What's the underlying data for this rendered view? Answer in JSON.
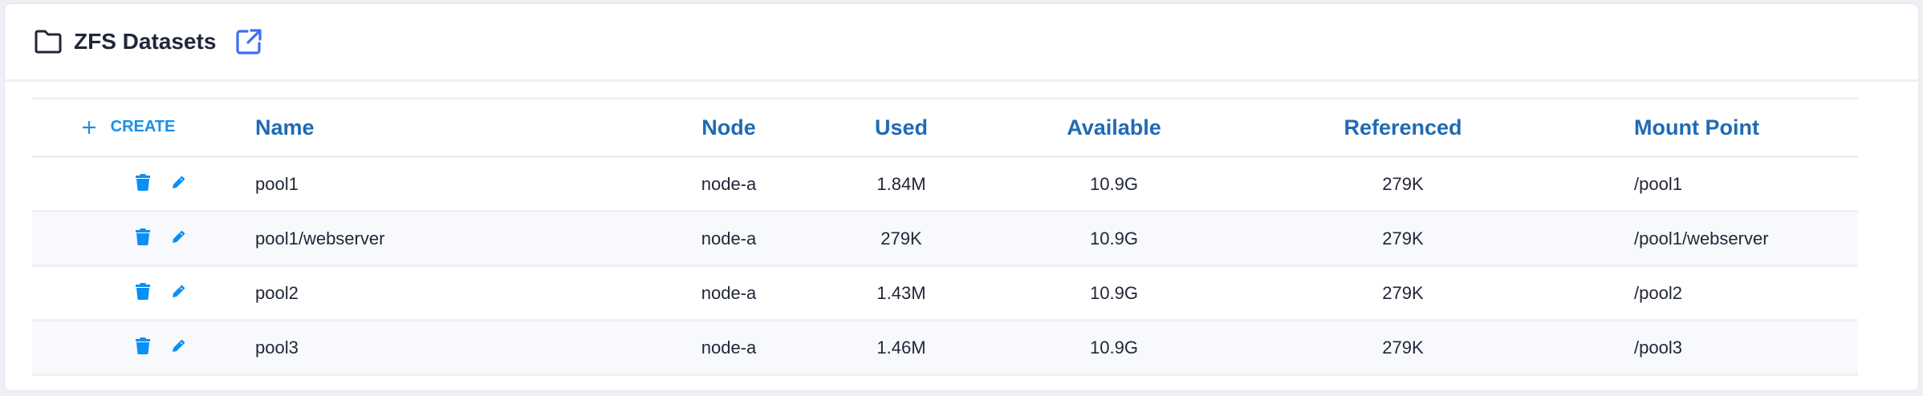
{
  "header": {
    "title": "ZFS Datasets",
    "folder_icon": "folder-icon",
    "external_icon": "external-link-icon"
  },
  "table": {
    "create_label": "CREATE",
    "columns": [
      "Name",
      "Node",
      "Used",
      "Available",
      "Referenced",
      "Mount Point"
    ],
    "rows": [
      {
        "name": "pool1",
        "node": "node-a",
        "used": "1.84M",
        "available": "10.9G",
        "referenced": "279K",
        "mount": "/pool1"
      },
      {
        "name": "pool1/webserver",
        "node": "node-a",
        "used": "279K",
        "available": "10.9G",
        "referenced": "279K",
        "mount": "/pool1/webserver"
      },
      {
        "name": "pool2",
        "node": "node-a",
        "used": "1.43M",
        "available": "10.9G",
        "referenced": "279K",
        "mount": "/pool2"
      },
      {
        "name": "pool3",
        "node": "node-a",
        "used": "1.46M",
        "available": "10.9G",
        "referenced": "279K",
        "mount": "/pool3"
      }
    ]
  },
  "colors": {
    "accent": "#1a8fe8",
    "header_text": "#1f6ab5",
    "link_icon": "#3d6ff2"
  }
}
